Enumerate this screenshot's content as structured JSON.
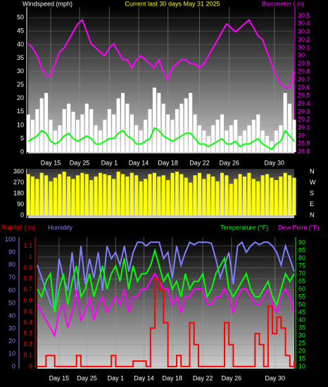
{
  "chart_data": [
    {
      "type": "combo",
      "title": "Current last 30 days May 31 2025",
      "xlim": [
        0,
        59
      ],
      "xticks": [
        {
          "value": 5,
          "label": "Day 15"
        },
        {
          "value": 11.4,
          "label": "Day 25"
        },
        {
          "value": 18,
          "label": "Day 1"
        },
        {
          "value": 24.5,
          "label": "Day 14"
        },
        {
          "value": 31,
          "label": "Day 18"
        },
        {
          "value": 38,
          "label": "Day 22"
        },
        {
          "value": 44.6,
          "label": "Day 26"
        },
        {
          "value": 54.6,
          "label": "Day 30"
        }
      ],
      "ylim": [
        -0.5,
        54
      ],
      "yticks": [
        0,
        5,
        10,
        15,
        20,
        25,
        30,
        35,
        40,
        45,
        50
      ],
      "y2lim": [
        28.78,
        30.61
      ],
      "y2ticks": [
        28.8,
        28.9,
        29,
        29.1,
        29.2,
        29.3,
        29.4,
        29.5,
        29.6,
        29.7,
        29.8,
        29.9,
        30,
        30.1,
        30.2,
        30.3,
        30.4,
        30.5
      ],
      "grid": true,
      "series": [
        {
          "name": "Windspeed (mph)",
          "type": "bar",
          "color": "#ffffff",
          "values": [
            14,
            12,
            16,
            20,
            22,
            12,
            8,
            10,
            16,
            18,
            15,
            12,
            14,
            18,
            16,
            10,
            8,
            12,
            16,
            14,
            20,
            22,
            18,
            14,
            10,
            8,
            12,
            16,
            24,
            22,
            18,
            14,
            12,
            16,
            18,
            20,
            22,
            14,
            10,
            8,
            6,
            10,
            12,
            14,
            8,
            10,
            12,
            6,
            8,
            10,
            12,
            14,
            8,
            6,
            4,
            8,
            10,
            22,
            18,
            12
          ]
        },
        {
          "type": "line",
          "color": "#00ff00",
          "values": [
            4,
            5,
            6,
            8,
            7,
            4,
            3,
            4,
            6,
            7,
            5,
            4,
            5,
            6,
            5,
            3,
            3,
            4,
            5,
            5,
            7,
            8,
            6,
            5,
            3,
            3,
            4,
            5,
            9,
            8,
            6,
            5,
            4,
            5,
            6,
            7,
            7,
            5,
            3,
            3,
            2,
            3,
            4,
            5,
            3,
            3,
            4,
            2,
            3,
            3,
            4,
            5,
            3,
            2,
            1,
            3,
            4,
            8,
            6,
            4
          ]
        },
        {
          "name": "Barometer (.in)",
          "type": "line",
          "axis": "y2",
          "color": "#ff00ff",
          "values": [
            30.15,
            30.1,
            30.0,
            29.85,
            29.75,
            29.75,
            29.9,
            30.05,
            30.1,
            30.2,
            30.3,
            30.4,
            30.45,
            30.3,
            30.15,
            30.1,
            30.05,
            30.0,
            30.1,
            30.15,
            30.05,
            29.95,
            29.95,
            29.85,
            29.95,
            30.0,
            29.95,
            29.9,
            29.85,
            29.95,
            29.8,
            29.7,
            29.85,
            29.9,
            29.95,
            29.95,
            29.9,
            29.9,
            29.85,
            29.9,
            30.0,
            30.1,
            30.2,
            30.3,
            30.4,
            30.35,
            30.3,
            30.35,
            30.4,
            30.45,
            30.35,
            30.25,
            30.2,
            30.05,
            29.9,
            29.75,
            29.65,
            29.6,
            29.6,
            29.8
          ]
        }
      ]
    },
    {
      "type": "bar",
      "xlim": [
        0,
        59
      ],
      "ylim": [
        -23,
        383
      ],
      "yticks": [
        360,
        270,
        180,
        90,
        0
      ],
      "right_labels": [
        "N",
        "W",
        "S",
        "E",
        "N"
      ],
      "series": [
        {
          "type": "bar",
          "color": "#ffff00",
          "values": [
            340,
            320,
            300,
            350,
            330,
            280,
            310,
            340,
            360,
            320,
            300,
            330,
            350,
            340,
            290,
            320,
            350,
            340,
            330,
            300,
            360,
            340,
            320,
            350,
            330,
            280,
            300,
            340,
            350,
            320,
            330,
            290,
            350,
            360,
            340,
            310,
            270,
            330,
            350,
            300,
            340,
            320,
            280,
            350,
            330,
            260,
            300,
            340,
            320,
            350,
            300,
            280,
            330,
            340,
            310,
            290,
            320,
            350,
            330,
            310
          ]
        }
      ]
    },
    {
      "type": "combo",
      "xlim": [
        0,
        59
      ],
      "xticks": [
        {
          "value": 5,
          "label": "Day 15"
        },
        {
          "value": 11.4,
          "label": "Day 25"
        },
        {
          "value": 18,
          "label": "Day 1"
        },
        {
          "value": 24.5,
          "label": "Day 14"
        },
        {
          "value": 31,
          "label": "Day 18"
        },
        {
          "value": 38,
          "label": "Day 22"
        },
        {
          "value": 44.6,
          "label": "Day 26"
        },
        {
          "value": 54.6,
          "label": "Day 30"
        }
      ],
      "ylim": [
        -0.02,
        1.18
      ],
      "yticks": [
        0,
        0.1,
        0.2,
        0.3,
        0.4,
        0.5,
        0.6,
        0.7,
        0.8,
        0.9,
        1,
        1.1
      ],
      "y3lim": [
        -1.5,
        102
      ],
      "y3ticks": [
        0,
        10,
        20,
        30,
        40,
        50,
        60,
        70,
        80,
        90,
        100
      ],
      "y2lim": [
        8.6,
        93.6
      ],
      "y2ticks": [
        10,
        15,
        20,
        25,
        30,
        35,
        40,
        45,
        50,
        55,
        60,
        65,
        70,
        75,
        80,
        85,
        90
      ],
      "grid": true,
      "series": [
        {
          "name": "Humidity",
          "type": "line",
          "axis": "y3",
          "color": "#8080ff",
          "values": [
            80,
            70,
            60,
            50,
            45,
            85,
            70,
            60,
            90,
            55,
            95,
            65,
            85,
            70,
            90,
            60,
            95,
            85,
            90,
            80,
            95,
            75,
            90,
            98,
            98,
            95,
            98,
            98,
            98,
            85,
            90,
            70,
            95,
            80,
            90,
            98,
            96,
            98,
            98,
            98,
            97,
            85,
            70,
            80,
            90,
            65,
            95,
            98,
            90,
            95,
            98,
            96,
            98,
            98,
            95,
            90,
            80,
            95,
            85,
            75
          ]
        },
        {
          "name": "Temperature (°F)",
          "type": "line",
          "axis": "y2",
          "color": "#00ff00",
          "values": [
            60,
            55,
            65,
            70,
            45,
            60,
            70,
            50,
            65,
            75,
            55,
            60,
            70,
            55,
            65,
            75,
            60,
            70,
            75,
            65,
            80,
            60,
            75,
            65,
            70,
            70,
            75,
            85,
            75,
            65,
            70,
            60,
            65,
            55,
            70,
            60,
            65,
            65,
            70,
            55,
            60,
            70,
            75,
            80,
            60,
            55,
            60,
            65,
            70,
            60,
            55,
            55,
            60,
            65,
            55,
            50,
            60,
            70,
            65,
            70
          ]
        },
        {
          "name": "Dew Point (°F)",
          "type": "line",
          "axis": "y2",
          "color": "#ff00ff",
          "values": [
            50,
            45,
            40,
            35,
            30,
            45,
            50,
            35,
            45,
            60,
            40,
            45,
            55,
            40,
            50,
            55,
            45,
            50,
            55,
            50,
            60,
            45,
            55,
            55,
            60,
            60,
            65,
            70,
            65,
            60,
            60,
            50,
            55,
            45,
            55,
            55,
            60,
            60,
            60,
            50,
            50,
            55,
            55,
            60,
            55,
            45,
            55,
            60,
            60,
            55,
            50,
            50,
            55,
            60,
            50,
            45,
            55,
            60,
            55,
            45
          ]
        },
        {
          "name": "Rainfall (.in)",
          "type": "step",
          "color": "#ff0000",
          "values": [
            0,
            0,
            0.1,
            0.1,
            0,
            0,
            0,
            0,
            0,
            0.1,
            0,
            0,
            0,
            0,
            0,
            0,
            0,
            0.1,
            0,
            0,
            0,
            0,
            0.05,
            0.05,
            0.05,
            0,
            0.35,
            0.8,
            0.7,
            0.4,
            0,
            0,
            0.1,
            0,
            0,
            0.4,
            0.2,
            0,
            0,
            0,
            0,
            0,
            0,
            0.4,
            0.2,
            0,
            0,
            0,
            0,
            0,
            0.3,
            0.2,
            0,
            0.55,
            0.3,
            0.45,
            0.35,
            0.1,
            0,
            0.05
          ]
        }
      ]
    }
  ]
}
